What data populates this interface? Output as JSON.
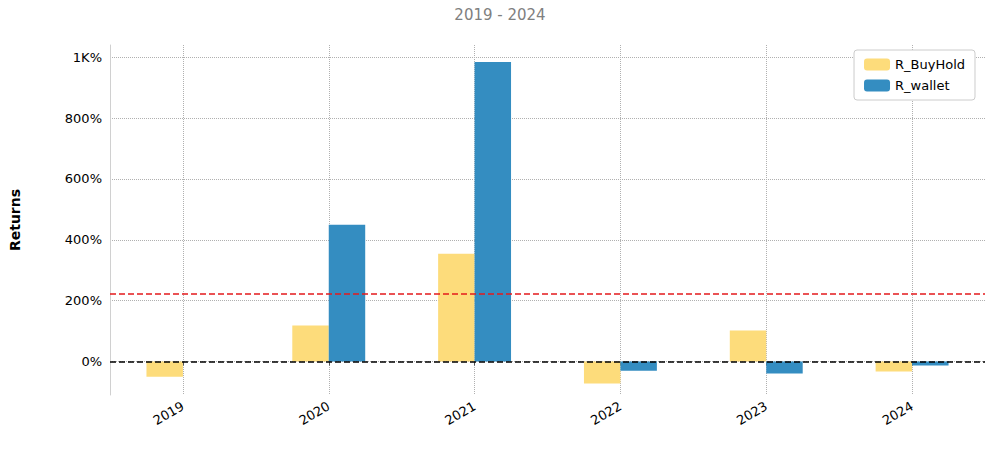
{
  "chart_data": {
    "type": "bar",
    "title": "2019 - 2024",
    "y_label": "Returns",
    "categories": [
      "2019",
      "2020",
      "2021",
      "2022",
      "2023",
      "2024"
    ],
    "series": [
      {
        "name": "R_BuyHold",
        "color": "#fddc7b",
        "values": [
          -50,
          118,
          354,
          -72,
          102,
          -33
        ]
      },
      {
        "name": "R_wallet",
        "color": "#348dc1",
        "values": [
          0,
          449,
          984,
          -30,
          -39,
          -13
        ]
      }
    ],
    "ylim": [
      -110,
      1040
    ],
    "yticks": [
      {
        "value": 0,
        "label": "0%"
      },
      {
        "value": 200,
        "label": "200%"
      },
      {
        "value": 400,
        "label": "400%"
      },
      {
        "value": 600,
        "label": "600%"
      },
      {
        "value": 800,
        "label": "800%"
      },
      {
        "value": 1000,
        "label": "1K%"
      }
    ],
    "grid": true,
    "legend": "upper right",
    "hlines": [
      {
        "value": 223,
        "color": "#e31a1c",
        "line_style": "dashed"
      },
      {
        "value": 0,
        "color": "#000000",
        "line_style": "dashed"
      }
    ]
  }
}
